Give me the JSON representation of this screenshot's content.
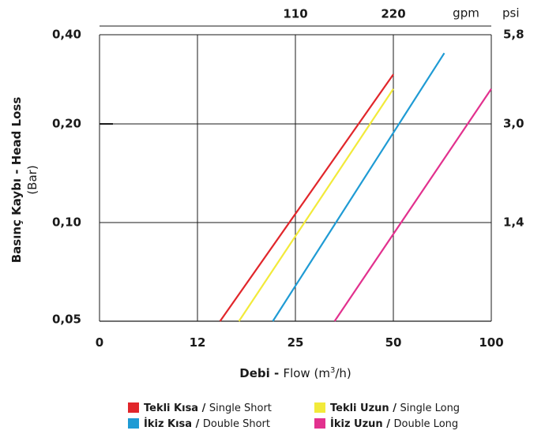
{
  "chart_data": {
    "type": "line",
    "x_axis": {
      "title_bold": "Debi - ",
      "title_rest": "Flow (m",
      "title_sup": "3",
      "title_end": "/h)",
      "ticks": [
        "0",
        "12",
        "25",
        "50",
        "100"
      ]
    },
    "x2_axis": {
      "unit": "gpm",
      "ticks": [
        "110",
        "220"
      ]
    },
    "y_axis": {
      "title_line1": "Basınç Kaybı - Head Loss",
      "title_line2": "(Bar)",
      "ticks": [
        "0,05",
        "0,10",
        "0,20",
        "0,40"
      ],
      "scale": "log"
    },
    "y2_axis": {
      "unit": "psi",
      "ticks": [
        "1,4",
        "3,0",
        "5,8"
      ]
    },
    "grid": true,
    "legend_position": "bottom",
    "series": [
      {
        "name_bold": "Tekli Kısa",
        "name_rest": "Single Short",
        "color": "#e1262b",
        "points": [
          [
            15,
            0.05
          ],
          [
            50,
            0.3
          ]
        ]
      },
      {
        "name_bold": "Tekli Uzun",
        "name_rest": "Single Long",
        "color": "#f2ea3a",
        "points": [
          [
            17.5,
            0.05
          ],
          [
            50,
            0.27
          ]
        ]
      },
      {
        "name_bold": "İkiz Kısa",
        "name_rest": "Double Short",
        "color": "#1f9bd4",
        "points": [
          [
            22,
            0.05
          ],
          [
            76,
            0.35
          ]
        ]
      },
      {
        "name_bold": "İkiz Uzun",
        "name_rest": "Double Long",
        "color": "#e2318e",
        "points": [
          [
            35,
            0.05
          ],
          [
            100,
            0.27
          ]
        ]
      }
    ]
  }
}
